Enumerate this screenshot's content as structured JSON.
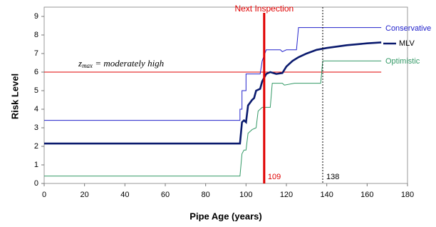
{
  "chart_data": {
    "type": "line",
    "xlabel": "Pipe Age (years)",
    "ylabel": "Risk Level",
    "xlim": [
      0,
      180
    ],
    "xticks": [
      0,
      20,
      40,
      60,
      80,
      100,
      120,
      140,
      160,
      180
    ],
    "ylim": [
      0,
      9.5
    ],
    "yticks": [
      0,
      1,
      2,
      3,
      4,
      5,
      6,
      7,
      8,
      9
    ],
    "series": [
      {
        "name": "Conservative",
        "color": "#2222cc",
        "width": 1,
        "x": [
          0,
          97,
          97,
          98,
          98,
          100,
          100,
          107,
          108,
          109,
          110,
          117,
          118,
          120,
          125,
          126,
          167
        ],
        "values": [
          3.4,
          3.4,
          4.0,
          4.0,
          5.0,
          5.0,
          5.9,
          5.9,
          6.6,
          6.9,
          7.2,
          7.2,
          7.1,
          7.2,
          7.2,
          8.4,
          8.4
        ]
      },
      {
        "name": "MLV",
        "color": "#0a1a6e",
        "width": 2.6,
        "x": [
          0,
          97,
          98,
          99,
          100,
          101,
          103,
          104,
          105,
          107,
          108,
          110,
          112,
          115,
          118,
          120,
          123,
          126,
          130,
          135,
          140,
          150,
          160,
          167
        ],
        "values": [
          2.15,
          2.15,
          3.3,
          3.4,
          3.3,
          4.2,
          4.5,
          4.6,
          5.0,
          5.1,
          5.5,
          5.9,
          6.0,
          5.9,
          5.95,
          6.3,
          6.6,
          6.8,
          7.0,
          7.2,
          7.3,
          7.45,
          7.55,
          7.6
        ]
      },
      {
        "name": "Optimistic",
        "color": "#339966",
        "width": 1,
        "x": [
          0,
          97,
          98,
          99,
          100,
          101,
          103,
          105,
          106,
          108,
          112,
          113,
          118,
          119,
          124,
          137,
          138,
          167
        ],
        "values": [
          0.4,
          0.4,
          1.6,
          1.8,
          1.8,
          2.7,
          2.9,
          3.0,
          3.9,
          4.1,
          4.1,
          5.4,
          5.4,
          5.3,
          5.4,
          5.4,
          6.6,
          6.6
        ]
      }
    ],
    "threshold": {
      "y": 6,
      "x_end": 167,
      "color": "#e00000",
      "label_base": "z",
      "label_sub": "max",
      "label_rest": " = moderately high"
    },
    "vlines": [
      {
        "x": 109,
        "color": "#e00000",
        "width": 3,
        "dash": false,
        "title": "Next Inspection"
      },
      {
        "x": 138,
        "color": "#000000",
        "width": 1,
        "dash": true
      }
    ]
  }
}
